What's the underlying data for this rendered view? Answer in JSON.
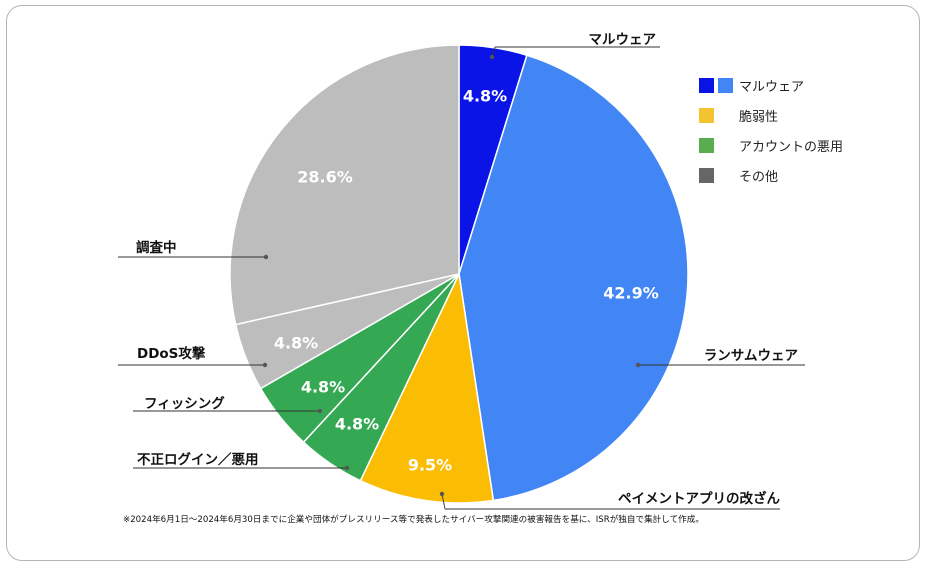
{
  "chart_data": {
    "type": "pie",
    "start_angle_deg": 0,
    "direction": "clockwise",
    "slices": [
      {
        "label": "マルウェア",
        "value": 4.8,
        "display": "4.8%",
        "color": "#0a14e6",
        "category": "マルウェア"
      },
      {
        "label": "ランサムウェア",
        "value": 42.9,
        "display": "42.9%",
        "color": "#4285f4",
        "category": "マルウェア"
      },
      {
        "label": "ペイメントアプリの改ざん",
        "value": 9.5,
        "display": "9.5%",
        "color": "#fbbc04",
        "category": "脆弱性"
      },
      {
        "label": "不正ログイン／悪用",
        "value": 4.8,
        "display": "4.8%",
        "color": "#34a853",
        "category": "アカウントの悪用"
      },
      {
        "label": "フィッシング",
        "value": 4.8,
        "display": "4.8%",
        "color": "#34a853",
        "category": "アカウントの悪用"
      },
      {
        "label": "DDoS攻撃",
        "value": 4.8,
        "display": "4.8%",
        "color": "#bdbdbd",
        "category": "その他"
      },
      {
        "label": "調査中",
        "value": 28.6,
        "display": "28.6%",
        "color": "#bdbdbd",
        "category": "その他"
      }
    ],
    "legend": {
      "placement": "right",
      "items": [
        {
          "label": "マルウェア",
          "colors": [
            "#0a14e6",
            "#4285f4"
          ]
        },
        {
          "label": "脆弱性",
          "colors": [
            "#f4c430"
          ]
        },
        {
          "label": "アカウントの悪用",
          "colors": [
            "#5aad4e"
          ]
        },
        {
          "label": "その他",
          "colors": [
            "#666666"
          ]
        }
      ]
    },
    "footnote": "※2024年6月1日～2024年6月30日までに企業や団体がプレスリリース等で発表したサイバー攻撃関連の被害報告を基に、ISRが独自で集計して作成。"
  }
}
